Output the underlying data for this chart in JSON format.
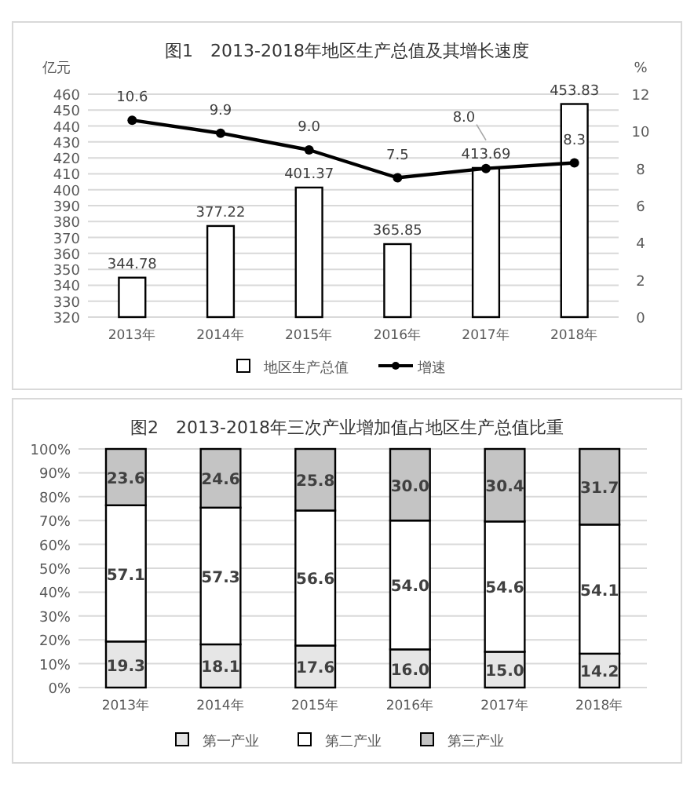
{
  "chart_data": [
    {
      "type": "bar",
      "title": "图1　2013-2018年地区生产总值及其增长速度",
      "ylabel": "亿元",
      "y2label": "%",
      "categories": [
        "2013年",
        "2014年",
        "2015年",
        "2016年",
        "2017年",
        "2018年"
      ],
      "series": [
        {
          "name": "地区生产总值",
          "type": "bar",
          "color": "#ffffff",
          "values": [
            344.78,
            377.22,
            401.37,
            365.85,
            413.69,
            453.83
          ],
          "value_labels": [
            "344.78",
            "377.22",
            "401.37",
            "365.85",
            "413.69",
            "453.83"
          ]
        },
        {
          "name": "增速",
          "type": "line",
          "axis": "y2",
          "color": "#000000",
          "values": [
            10.6,
            9.9,
            9.0,
            7.5,
            8.0,
            8.3
          ],
          "value_labels": [
            "10.6",
            "9.9",
            "9.0",
            "7.5",
            "8.0",
            "8.3"
          ]
        }
      ],
      "ylim": [
        320,
        460
      ],
      "yticks": [
        320,
        330,
        340,
        350,
        360,
        370,
        380,
        390,
        400,
        410,
        420,
        430,
        440,
        450,
        460
      ],
      "y2lim": [
        0,
        12
      ],
      "y2ticks": [
        0,
        2,
        4,
        6,
        8,
        10,
        12
      ],
      "grid": "y",
      "legend": "bottom",
      "marker": "circle",
      "line_style": "solid"
    },
    {
      "type": "bar",
      "title": "图2　2013-2018年三次产业增加值占地区生产总值比重",
      "stacked": true,
      "categories": [
        "2013年",
        "2014年",
        "2015年",
        "2016年",
        "2017年",
        "2018年"
      ],
      "series": [
        {
          "name": "第一产业",
          "color": "#e6e6e6",
          "values": [
            19.3,
            18.1,
            17.6,
            16.0,
            15.0,
            14.2
          ],
          "value_labels": [
            "19.3",
            "18.1",
            "17.6",
            "16.0",
            "15.0",
            "14.2"
          ]
        },
        {
          "name": "第二产业",
          "color": "#ffffff",
          "values": [
            57.1,
            57.3,
            56.6,
            54.0,
            54.6,
            54.1
          ],
          "value_labels": [
            "57.1",
            "57.3",
            "56.6",
            "54.0",
            "54.6",
            "54.1"
          ]
        },
        {
          "name": "第三产业",
          "color": "#c4c4c4",
          "values": [
            23.6,
            24.6,
            25.8,
            30.0,
            30.4,
            31.7
          ],
          "value_labels": [
            "23.6",
            "24.6",
            "25.8",
            "30.0",
            "30.4",
            "31.7"
          ]
        }
      ],
      "ylim": [
        0,
        100
      ],
      "yticks": [
        {
          "value": 0,
          "label": "0%"
        },
        {
          "value": 10,
          "label": "10%"
        },
        {
          "value": 20,
          "label": "20%"
        },
        {
          "value": 30,
          "label": "30%"
        },
        {
          "value": 40,
          "label": "40%"
        },
        {
          "value": 50,
          "label": "50%"
        },
        {
          "value": 60,
          "label": "60%"
        },
        {
          "value": 70,
          "label": "70%"
        },
        {
          "value": 80,
          "label": "80%"
        },
        {
          "value": 90,
          "label": "90%"
        },
        {
          "value": 100,
          "label": "100%"
        }
      ],
      "grid": "y",
      "legend": "bottom"
    }
  ]
}
